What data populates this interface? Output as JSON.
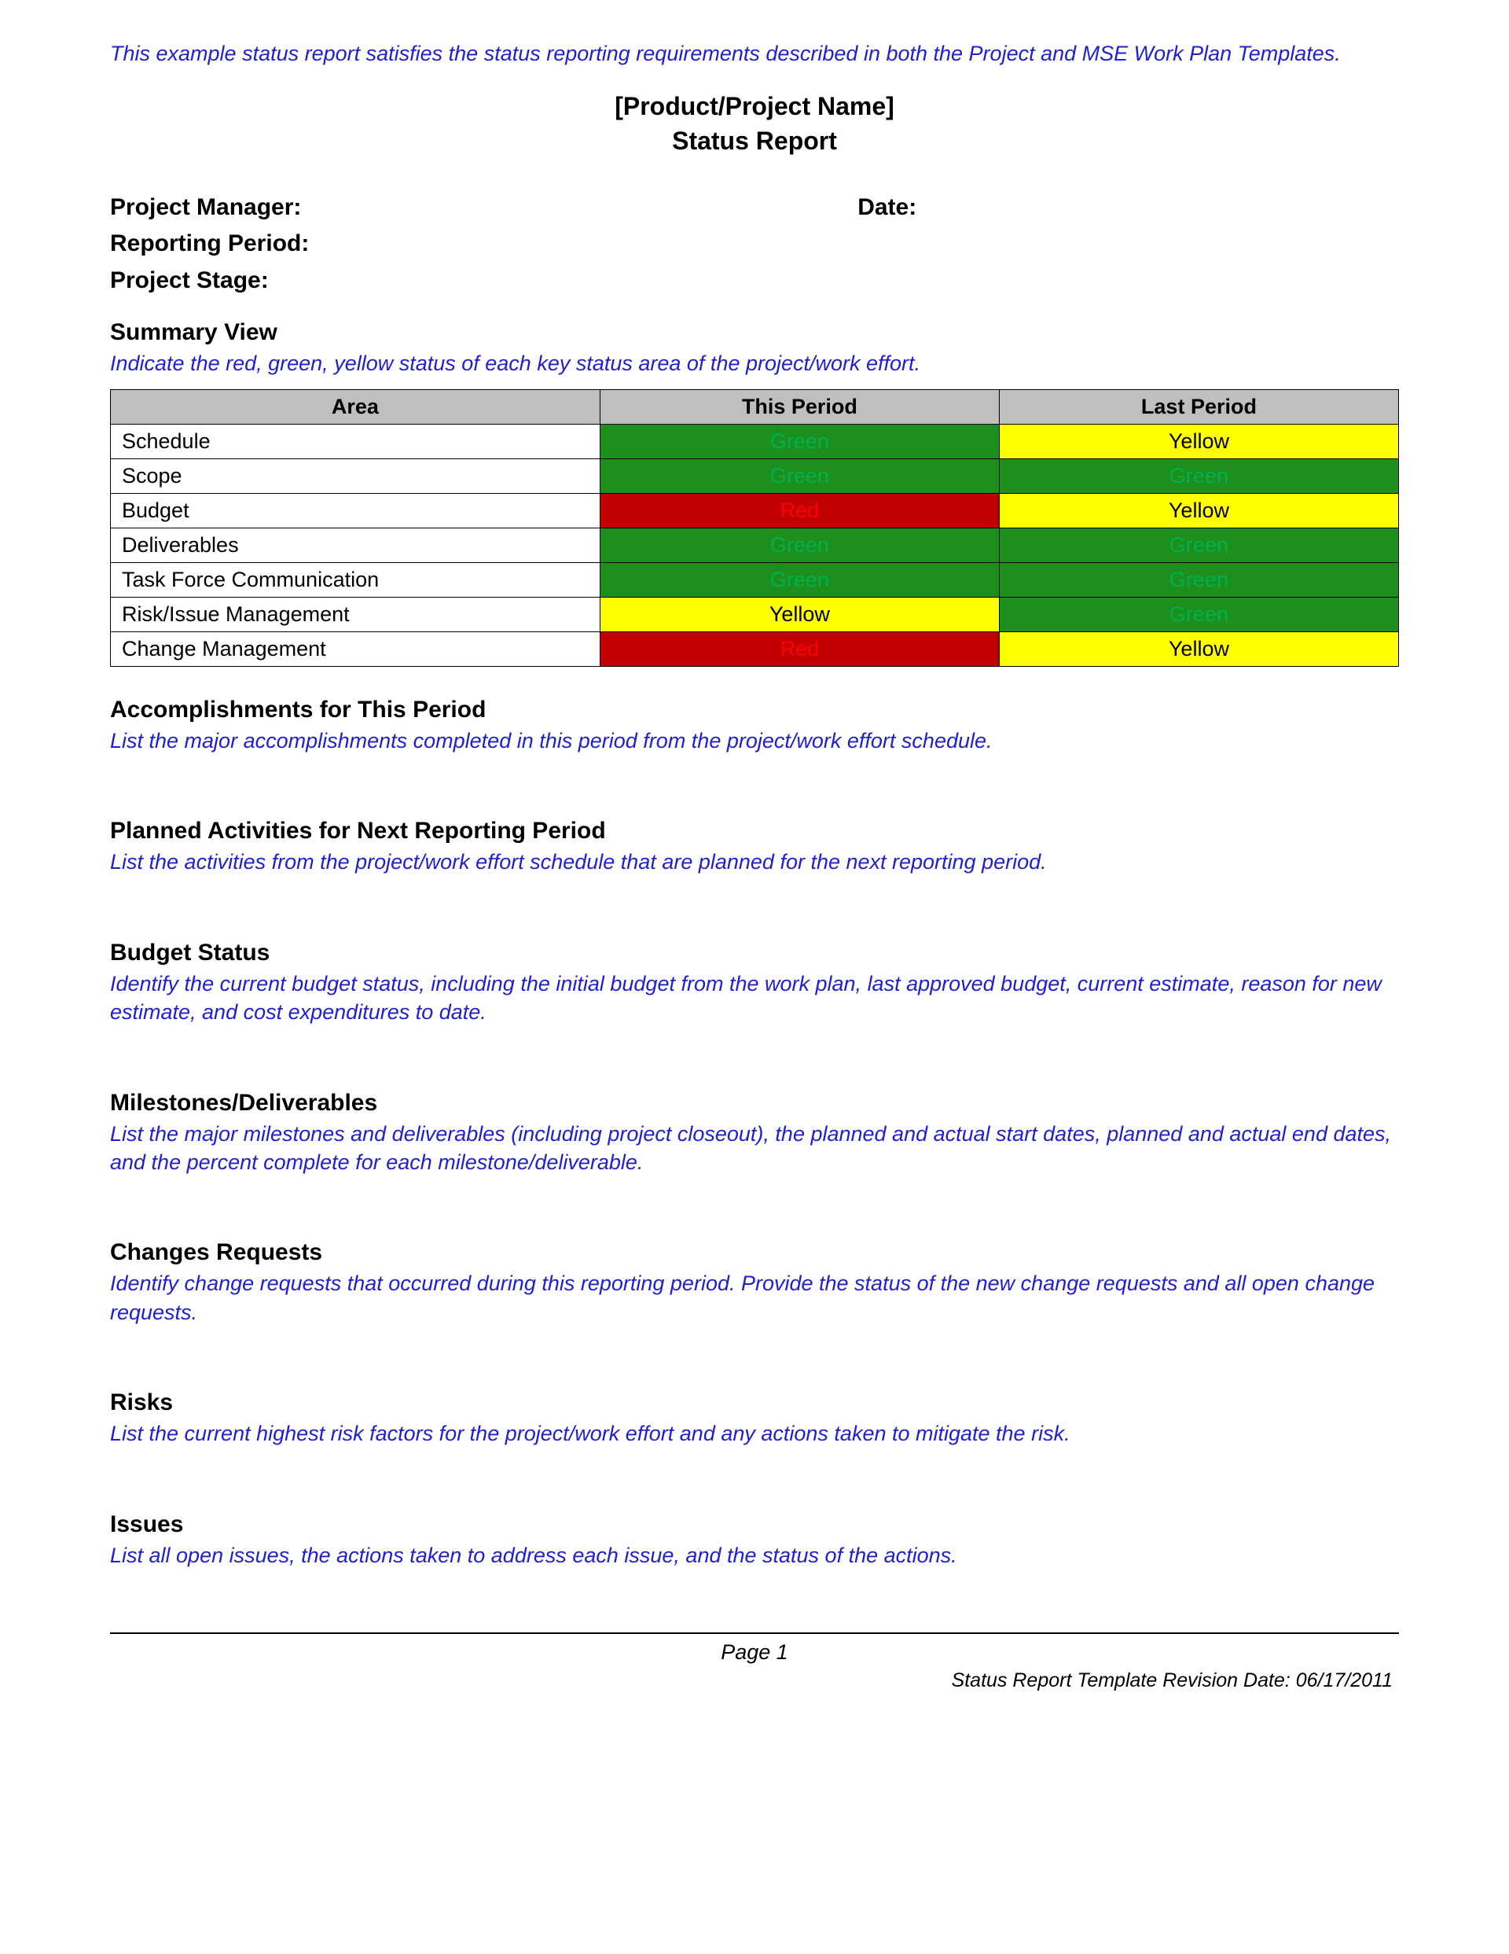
{
  "colors": {
    "instruction_text": "#2020d0",
    "heading_text": "#000000",
    "header_row_bg": "#bfbfbf",
    "border": "#000000",
    "status": {
      "Green": {
        "bg": "#1d8f1d",
        "fg": "#00b050"
      },
      "Yellow": {
        "bg": "#ffff00",
        "fg": "#000000"
      },
      "Red": {
        "bg": "#c00000",
        "fg": "#ff0000"
      }
    }
  },
  "fonts": {
    "body_size_pt": 20,
    "title_size_pt": 24,
    "heading_weight": "bold"
  },
  "intro_note": "This example status report satisfies the status reporting requirements described in both the Project and MSE Work Plan Templates.",
  "title": {
    "line1": "[Product/Project Name]",
    "line2": "Status Report"
  },
  "meta": {
    "project_manager_label": "Project Manager:",
    "date_label": "Date:",
    "reporting_period_label": "Reporting Period:",
    "project_stage_label": "Project Stage:"
  },
  "summary": {
    "heading": "Summary View",
    "instruction": "Indicate the red, green, yellow status of each key status area of the project/work effort.",
    "columns": [
      "Area",
      "This Period",
      "Last Period"
    ],
    "rows": [
      {
        "area": "Schedule",
        "this": "Green",
        "last": "Yellow"
      },
      {
        "area": "Scope",
        "this": "Green",
        "last": "Green"
      },
      {
        "area": "Budget",
        "this": "Red",
        "last": "Yellow"
      },
      {
        "area": "Deliverables",
        "this": "Green",
        "last": "Green"
      },
      {
        "area": "Task Force Communication",
        "this": "Green",
        "last": "Green"
      },
      {
        "area": "Risk/Issue Management",
        "this": "Yellow",
        "last": "Green"
      },
      {
        "area": "Change Management",
        "this": "Red",
        "last": "Yellow"
      }
    ]
  },
  "sections": [
    {
      "heading": "Accomplishments for This Period",
      "instruction": "List the major accomplishments completed in this period from the project/work effort schedule."
    },
    {
      "heading": "Planned Activities for Next Reporting Period",
      "instruction": "List the activities from the project/work effort schedule that are planned for the next reporting period."
    },
    {
      "heading": "Budget Status",
      "instruction": "Identify the current budget status, including the initial budget from the work plan, last approved budget, current estimate, reason for new estimate, and cost expenditures to date."
    },
    {
      "heading": "Milestones/Deliverables",
      "instruction": "List the major milestones and deliverables (including project closeout), the planned and actual start dates, planned and actual end dates, and the percent complete for each milestone/deliverable."
    },
    {
      "heading": "Changes Requests",
      "instruction": "Identify change requests that occurred during this reporting period. Provide the status of the new change requests and all open change requests."
    },
    {
      "heading": "Risks",
      "instruction": "List the current highest risk factors for the project/work effort and any actions taken to mitigate the risk."
    },
    {
      "heading": "Issues",
      "instruction": "List all open issues, the actions taken to address each issue, and the status of the actions."
    }
  ],
  "footer": {
    "page_label": "Page 1",
    "revision": "Status Report Template Revision Date: 06/17/2011"
  }
}
